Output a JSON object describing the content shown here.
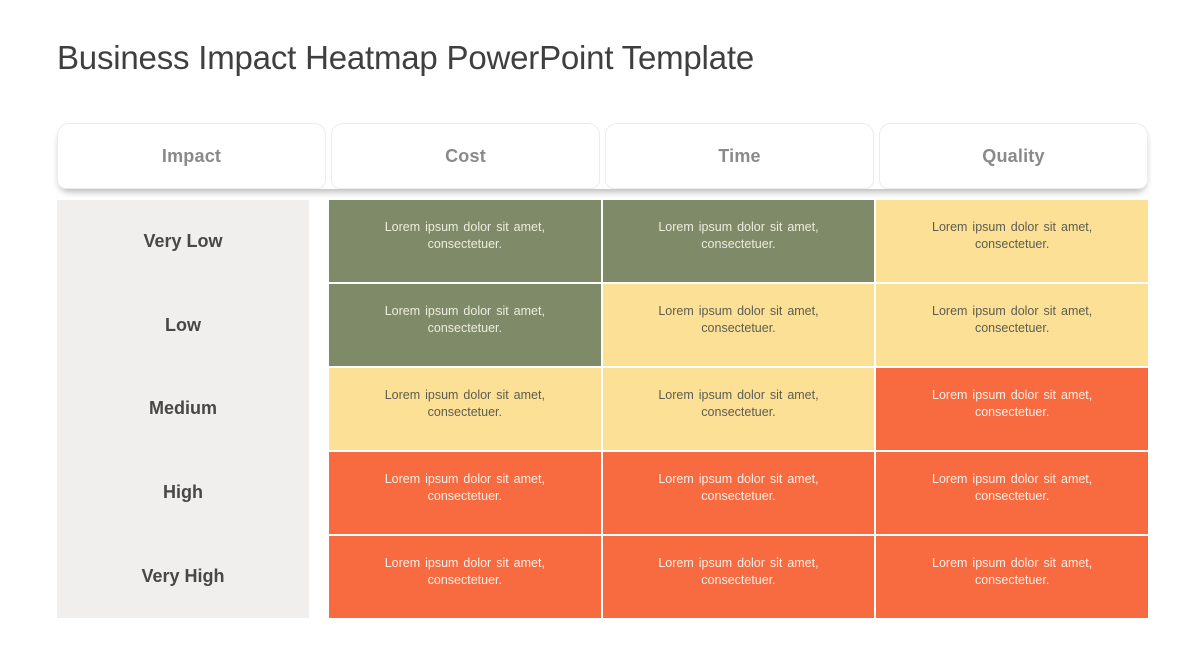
{
  "page_title": "Business Impact Heatmap PowerPoint Template",
  "colors": {
    "level_green": "#7F8A68",
    "level_yellow": "#FCE095",
    "level_orange": "#F86B40",
    "label_column_bg": "#F0EFEE",
    "header_text": "#8A8A8A",
    "label_text": "#474747",
    "title_text": "#3F3F3F"
  },
  "heatmap": {
    "columns": [
      {
        "label": "Impact"
      },
      {
        "label": "Cost"
      },
      {
        "label": "Time"
      },
      {
        "label": "Quality"
      }
    ],
    "rows": [
      {
        "label": "Very Low",
        "cells": [
          {
            "text": "Lorem ipsum dolor sit amet, consectetuer.",
            "level": "green",
            "bg": "#7F8A68",
            "fg": "#EBEDDE"
          },
          {
            "text": "Lorem ipsum dolor sit amet, consectetuer.",
            "level": "green",
            "bg": "#7F8A68",
            "fg": "#EBEDDE"
          },
          {
            "text": "Lorem ipsum dolor sit amet, consectetuer.",
            "level": "yellow",
            "bg": "#FCE095",
            "fg": "#5C5D51"
          }
        ]
      },
      {
        "label": "Low",
        "cells": [
          {
            "text": "Lorem ipsum dolor sit amet, consectetuer.",
            "level": "green",
            "bg": "#7F8A68",
            "fg": "#EBEDDE"
          },
          {
            "text": "Lorem ipsum dolor sit amet, consectetuer.",
            "level": "yellow",
            "bg": "#FCE095",
            "fg": "#5C5D51"
          },
          {
            "text": "Lorem ipsum dolor sit amet, consectetuer.",
            "level": "yellow",
            "bg": "#FCE095",
            "fg": "#5C5D51"
          }
        ]
      },
      {
        "label": "Medium",
        "cells": [
          {
            "text": "Lorem ipsum dolor sit amet, consectetuer.",
            "level": "yellow",
            "bg": "#FCE095",
            "fg": "#5C5D51"
          },
          {
            "text": "Lorem ipsum dolor sit amet, consectetuer.",
            "level": "yellow",
            "bg": "#FCE095",
            "fg": "#5C5D51"
          },
          {
            "text": "Lorem ipsum dolor sit amet, consectetuer.",
            "level": "orange",
            "bg": "#F86B40",
            "fg": "#FCEDE5"
          }
        ]
      },
      {
        "label": "High",
        "cells": [
          {
            "text": "Lorem ipsum dolor sit amet, consectetuer.",
            "level": "orange",
            "bg": "#F86B40",
            "fg": "#FCEDE5"
          },
          {
            "text": "Lorem ipsum dolor sit amet, consectetuer.",
            "level": "orange",
            "bg": "#F86B40",
            "fg": "#FCEDE5"
          },
          {
            "text": "Lorem ipsum dolor sit amet, consectetuer.",
            "level": "orange",
            "bg": "#F86B40",
            "fg": "#FCEDE5"
          }
        ]
      },
      {
        "label": "Very High",
        "cells": [
          {
            "text": "Lorem ipsum dolor sit amet, consectetuer.",
            "level": "orange",
            "bg": "#F86B40",
            "fg": "#FCEDE5"
          },
          {
            "text": "Lorem ipsum dolor sit amet, consectetuer.",
            "level": "orange",
            "bg": "#F86B40",
            "fg": "#FCEDE5"
          },
          {
            "text": "Lorem ipsum dolor sit amet, consectetuer.",
            "level": "orange",
            "bg": "#F86B40",
            "fg": "#FCEDE5"
          }
        ]
      }
    ]
  },
  "chart_data": {
    "type": "heatmap",
    "title": "Business Impact Heatmap PowerPoint Template",
    "x_categories": [
      "Cost",
      "Time",
      "Quality"
    ],
    "y_categories": [
      "Very Low",
      "Low",
      "Medium",
      "High",
      "Very High"
    ],
    "values": [
      [
        1,
        1,
        2
      ],
      [
        1,
        2,
        2
      ],
      [
        2,
        2,
        3
      ],
      [
        3,
        3,
        3
      ],
      [
        3,
        3,
        3
      ]
    ],
    "value_legend": {
      "1": "green #7F8A68",
      "2": "yellow #FCE095",
      "3": "orange #F86B40"
    },
    "cell_label": "Lorem ipsum dolor sit amet, consectetuer.",
    "corner_header": "Impact",
    "grid": "thin white dividers",
    "legend_position": "none"
  }
}
